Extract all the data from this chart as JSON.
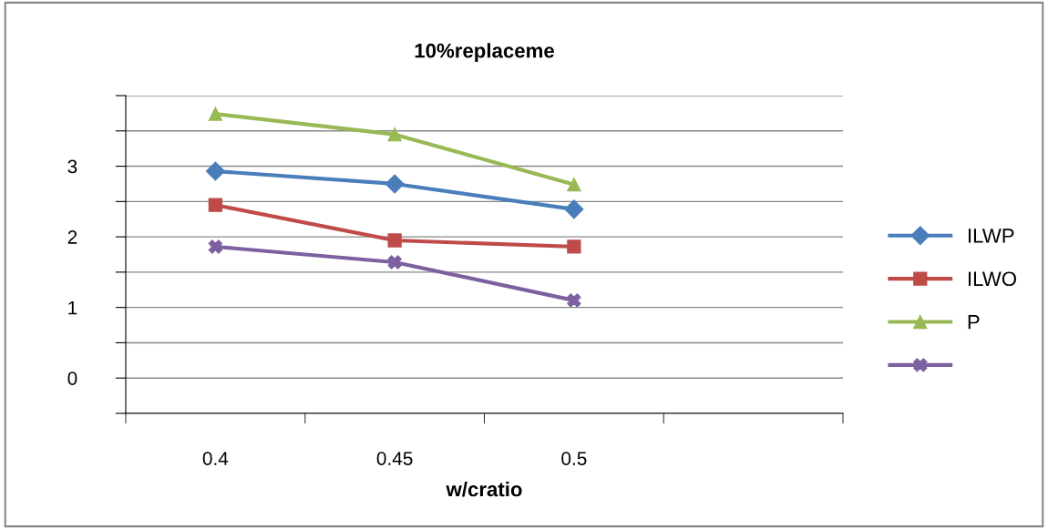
{
  "chart_data": {
    "type": "line",
    "title": "10%replaceme",
    "xlabel": "w/cratio",
    "categories": [
      "0.4",
      "0.45",
      "0.5",
      null
    ],
    "series": [
      {
        "name": "ILWP",
        "color": "#4a7ebb",
        "marker": "diamond",
        "values": [
          2.93,
          2.75,
          2.39,
          null
        ]
      },
      {
        "name": "ILWO",
        "color": "#be4b48",
        "marker": "square",
        "values": [
          2.45,
          1.95,
          1.86,
          null
        ]
      },
      {
        "name": "P",
        "color": "#98b954",
        "marker": "triangle",
        "values": [
          3.74,
          3.45,
          2.74,
          null
        ]
      },
      {
        "color": "#7d60a0",
        "marker": "cross",
        "values": [
          1.86,
          1.64,
          1.1,
          null
        ]
      }
    ],
    "ylim": [
      -0.5,
      4
    ],
    "yticks": [
      {
        "value": -0.5,
        "label": null
      },
      0,
      {
        "value": 0.5,
        "label": null
      },
      1,
      {
        "value": 1.5,
        "label": null
      },
      2,
      {
        "value": 2.5,
        "label": null
      },
      3,
      {
        "value": 3.5,
        "label": null
      },
      {
        "value": 4,
        "label": null
      }
    ],
    "grid": "y",
    "legend": "right",
    "line_style": "solid"
  }
}
